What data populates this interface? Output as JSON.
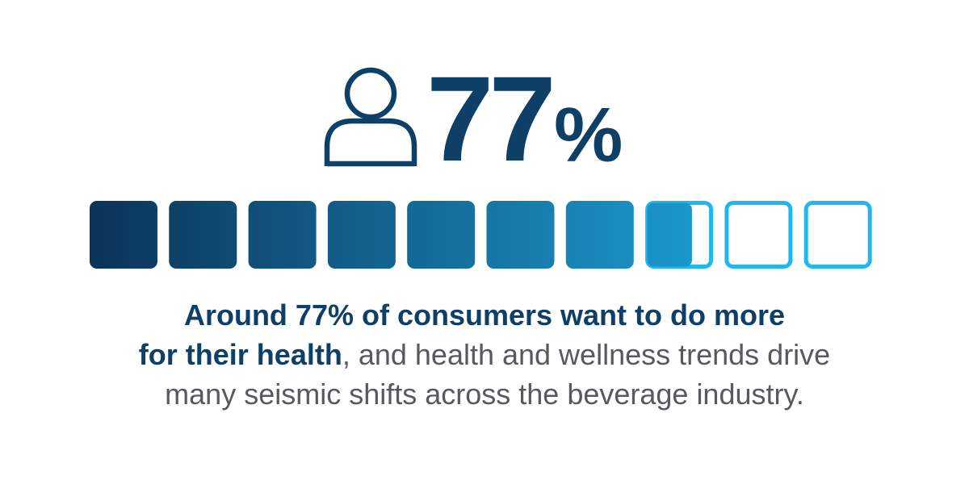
{
  "stat": {
    "value": "77",
    "unit": "%",
    "icon": "person-icon",
    "percent": 77
  },
  "progress": {
    "total_blocks": 10,
    "filled_fraction": 0.77,
    "gradient_start": "#0b3358",
    "gradient_end": "#20b6ee",
    "outline_color": "#20b6ee"
  },
  "caption": {
    "bold_line1": "Around 77% of consumers want to do more",
    "bold_line2": "for their health",
    "normal_line2": ", and health and wellness trends drive",
    "normal_line3": "many seismic shifts across the beverage industry."
  },
  "colors": {
    "primary": "#0e3f66",
    "body_text": "#555a5e"
  }
}
